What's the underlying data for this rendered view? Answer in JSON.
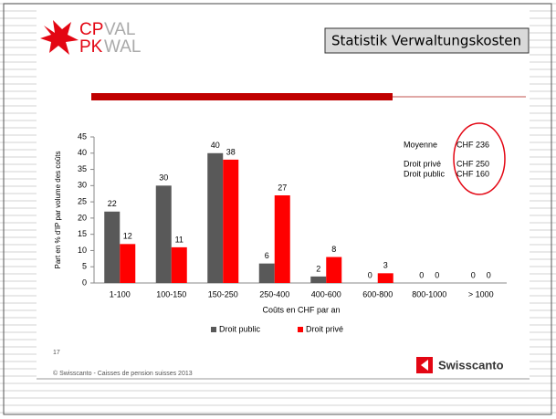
{
  "slide": {
    "logo": [
      "CP",
      "VAL",
      "PK",
      "WAL"
    ],
    "title": "Statistik Verwaltungskosten",
    "page_number": "17",
    "copyright": "© Swisscanto - Caisses de pension suisses 2013",
    "brand": "Swisscanto"
  },
  "chart_data": {
    "type": "bar",
    "categories": [
      "1-100",
      "100-150",
      "150-250",
      "250-400",
      "400-600",
      "600-800",
      "800-1000",
      "> 1000"
    ],
    "series": [
      {
        "name": "Droit public",
        "color": "#595959",
        "values": [
          22,
          30,
          40,
          6,
          2,
          0,
          0,
          0
        ]
      },
      {
        "name": "Droit privé",
        "color": "#ff0000",
        "values": [
          12,
          11,
          38,
          27,
          8,
          3,
          0,
          0
        ]
      }
    ],
    "ylim": [
      0,
      45
    ],
    "yticks": [
      0,
      5,
      10,
      15,
      20,
      25,
      30,
      35,
      40,
      45
    ],
    "grid": false,
    "ylabel": "Part en % d'IP par volume des coûts",
    "xlabel": "Coûts en CHF par an",
    "annotations": [
      [
        "Moyenne",
        "CHF 236"
      ],
      [
        "Droit privé",
        "CHF 250"
      ],
      [
        "Droit public",
        "CHF 160"
      ]
    ]
  }
}
